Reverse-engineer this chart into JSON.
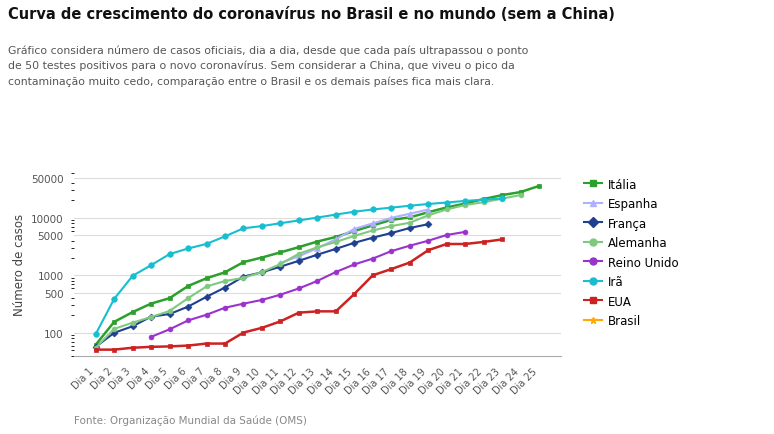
{
  "title": "Curva de crescimento do coronavírus no Brasil e no mundo (sem a China)",
  "subtitle": "Gráfico considera número de casos oficiais, dia a dia, desde que cada país ultrapassou o ponto\nde 50 testes positivos para o novo coronavírus. Sem considerar a China, que viveu o pico da\ncontaminação muito cedo, comparação entre o Brasil e os demais países fica mais clara.",
  "ylabel": "Número de casos",
  "source": "Fonte: Organização Mundial da Saúde (OMS)",
  "days": [
    "Dia 1",
    "Dia 2",
    "Dia 3",
    "Dia 4",
    "Dia 5",
    "Dia 6",
    "Dia 7",
    "Dia 8",
    "Dia 9",
    "Dia 10",
    "Dia 11",
    "Dia 12",
    "Dia 13",
    "Dia 14",
    "Dia 15",
    "Dia 16",
    "Dia 17",
    "Dia 18",
    "Dia 19",
    "Dia 20",
    "Dia 21",
    "Dia 22",
    "Dia 23",
    "Dia 24",
    "Dia 25"
  ],
  "series": {
    "Itália": {
      "color": "#2ca02c",
      "marker": "s",
      "markersize": 3.5,
      "linewidth": 1.8,
      "values": [
        62,
        155,
        229,
        322,
        400,
        650,
        888,
        1128,
        1694,
        2036,
        2502,
        3089,
        3858,
        4636,
        5883,
        7375,
        9172,
        10149,
        12462,
        15113,
        17660,
        21157,
        24747,
        27980,
        35713
      ]
    },
    "Espanha": {
      "color": "#b0b0ff",
      "marker": "^",
      "markersize": 4.5,
      "linewidth": 1.5,
      "values": [
        null,
        null,
        null,
        null,
        null,
        null,
        null,
        null,
        null,
        null,
        1639,
        2140,
        2952,
        4231,
        6391,
        7988,
        9942,
        11748,
        13910,
        null,
        null,
        null,
        null,
        null,
        null
      ]
    },
    "França": {
      "color": "#1f3f8f",
      "marker": "D",
      "markersize": 3.5,
      "linewidth": 1.5,
      "values": [
        57,
        100,
        130,
        191,
        212,
        285,
        423,
        613,
        949,
        1126,
        1412,
        1784,
        2281,
        2876,
        3667,
        4500,
        5423,
        6633,
        7730,
        null,
        null,
        null,
        null,
        null,
        null
      ]
    },
    "Alemanha": {
      "color": "#7fc97f",
      "marker": "o",
      "markersize": 3.5,
      "linewidth": 1.5,
      "values": [
        55,
        117,
        150,
        188,
        240,
        400,
        639,
        795,
        902,
        1139,
        1567,
        2369,
        3062,
        3795,
        4838,
        6012,
        7156,
        8198,
        10999,
        13957,
        16662,
        18610,
        21463,
        24873,
        null
      ]
    },
    "Reino Unido": {
      "color": "#9933cc",
      "marker": "o",
      "markersize": 3.5,
      "linewidth": 1.5,
      "values": [
        null,
        null,
        null,
        85,
        115,
        164,
        206,
        273,
        321,
        373,
        460,
        590,
        798,
        1140,
        1543,
        1950,
        2626,
        3269,
        3983,
        5018,
        5683,
        null,
        null,
        null,
        null
      ]
    },
    "Irã": {
      "color": "#17becf",
      "marker": "o",
      "markersize": 4,
      "linewidth": 1.5,
      "values": [
        95,
        388,
        978,
        1501,
        2336,
        2922,
        3513,
        4747,
        6566,
        7161,
        8042,
        9000,
        10075,
        11364,
        12729,
        13938,
        14991,
        16169,
        17361,
        18407,
        19644,
        20610,
        21638,
        null,
        null
      ]
    },
    "EUA": {
      "color": "#cc2222",
      "marker": "s",
      "markersize": 3.5,
      "linewidth": 1.8,
      "values": [
        51,
        51,
        55,
        57,
        58,
        60,
        65,
        65,
        101,
        122,
        158,
        224,
        236,
        236,
        472,
        1000,
        1281,
        1663,
        2727,
        3499,
        3499,
        3800,
        4200,
        null,
        null
      ]
    },
    "Brasil": {
      "color": "#ffaa00",
      "marker": "*",
      "markersize": 7,
      "linewidth": 1.5,
      "values": [
        null,
        null,
        null,
        null,
        null,
        null,
        null,
        null,
        null,
        null,
        null,
        null,
        null,
        null,
        null,
        null,
        null,
        null,
        null,
        null,
        null,
        null,
        null,
        null,
        null
      ]
    }
  },
  "background_color": "#ffffff",
  "grid_color": "#dddddd",
  "ylim_log": [
    40,
    60000
  ],
  "yticks": [
    100,
    500,
    1000,
    5000,
    10000,
    50000
  ],
  "ytick_labels": [
    "100",
    "500",
    "1000",
    "5000",
    "10000",
    "50000"
  ],
  "fig_width": 7.74,
  "fig_height": 4.35,
  "dpi": 100
}
